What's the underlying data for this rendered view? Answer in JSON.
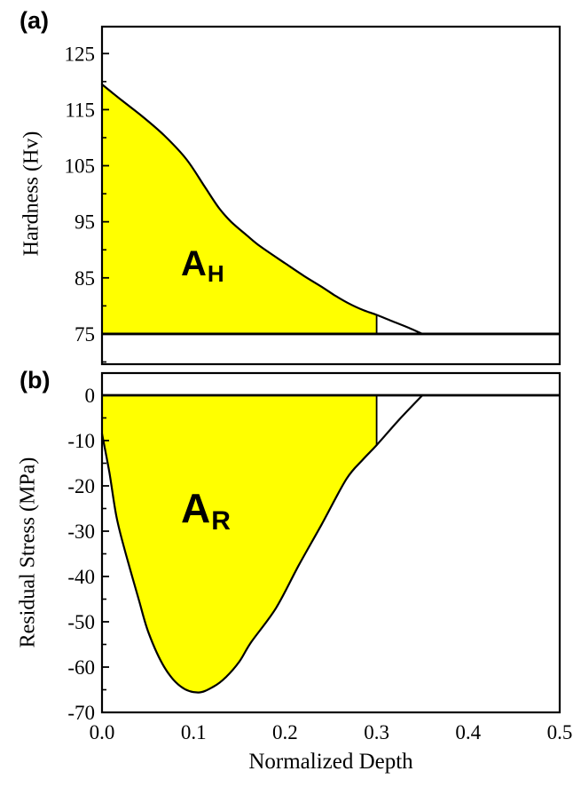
{
  "figure": {
    "background": "#ffffff",
    "accent_fill": "#FFFF00",
    "line_color": "#000000"
  },
  "chart_data": [
    {
      "type": "area",
      "panel_label": "(a)",
      "ylabel": "Hardness (Hv)",
      "area_label": {
        "main": "A",
        "sub": "H"
      },
      "baseline": 75,
      "fill_to_x": 0.3,
      "fill_color": "#FFFF00",
      "line_color": "#000000",
      "grid": false,
      "xlim": [
        0,
        0.5
      ],
      "ylim": [
        69.6,
        129.8
      ],
      "yticks": [
        125,
        115,
        105,
        95,
        85,
        75
      ],
      "ytick_minor_step": 5,
      "points": [
        [
          0,
          119.5
        ],
        [
          0.022,
          116.6
        ],
        [
          0.044,
          113.8
        ],
        [
          0.068,
          110.4
        ],
        [
          0.092,
          106.2
        ],
        [
          0.112,
          101.3
        ],
        [
          0.128,
          97.4
        ],
        [
          0.141,
          95
        ],
        [
          0.158,
          92.6
        ],
        [
          0.173,
          90.6
        ],
        [
          0.2,
          87.6
        ],
        [
          0.221,
          85.3
        ],
        [
          0.24,
          83.4
        ],
        [
          0.254,
          81.9
        ],
        [
          0.27,
          80.4
        ],
        [
          0.286,
          79.2
        ],
        [
          0.3,
          78.4
        ],
        [
          0.318,
          77.2
        ],
        [
          0.335,
          76.1
        ],
        [
          0.35,
          75
        ]
      ]
    },
    {
      "type": "area",
      "panel_label": "(b)",
      "ylabel": "Residual Stress (MPa)",
      "xlabel": "Normalized Depth",
      "area_label": {
        "main": "A",
        "sub": "R"
      },
      "baseline": 0,
      "fill_to_x": 0.3,
      "fill_color": "#FFFF00",
      "line_color": "#000000",
      "grid": false,
      "xlim": [
        0,
        0.5
      ],
      "ylim": [
        -70,
        4.9
      ],
      "yticks": [
        0,
        -10,
        -20,
        -30,
        -40,
        -50,
        -60,
        -70
      ],
      "ytick_minor_step": 5,
      "xtick_values": [
        0,
        0.1,
        0.2,
        0.3,
        0.4,
        0.5
      ],
      "xtick_labels": [
        "0.0",
        "0.1",
        "0.2",
        "0.3",
        "0.4",
        "0.5"
      ],
      "points": [
        [
          0,
          -8.5
        ],
        [
          0.008,
          -17
        ],
        [
          0.016,
          -27
        ],
        [
          0.026,
          -35
        ],
        [
          0.04,
          -45
        ],
        [
          0.051,
          -52.5
        ],
        [
          0.068,
          -60
        ],
        [
          0.086,
          -64.3
        ],
        [
          0.105,
          -65.6
        ],
        [
          0.122,
          -64.3
        ],
        [
          0.135,
          -62.3
        ],
        [
          0.15,
          -58.8
        ],
        [
          0.163,
          -54.5
        ],
        [
          0.19,
          -47
        ],
        [
          0.215,
          -37.5
        ],
        [
          0.24,
          -28.5
        ],
        [
          0.267,
          -18.5
        ],
        [
          0.285,
          -14.2
        ],
        [
          0.3,
          -11
        ],
        [
          0.325,
          -5.3
        ],
        [
          0.35,
          0
        ]
      ]
    }
  ]
}
